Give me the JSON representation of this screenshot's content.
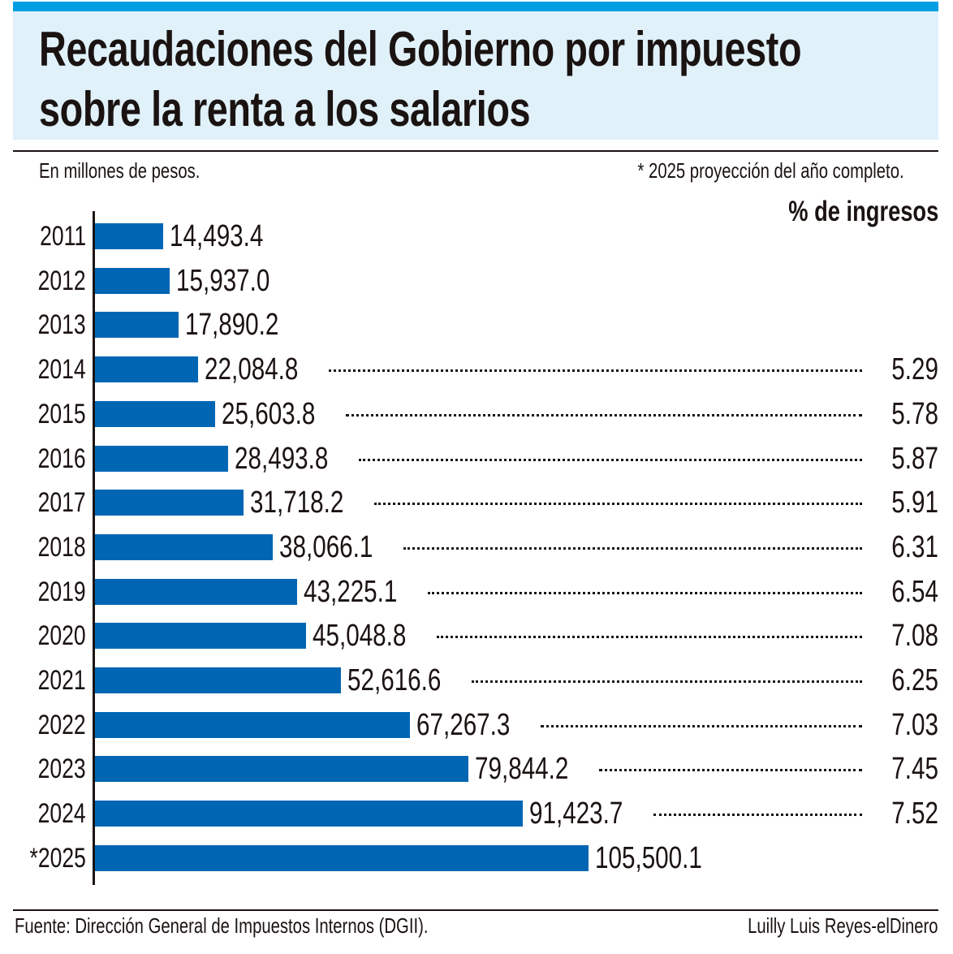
{
  "chart_data": {
    "type": "bar",
    "orientation": "horizontal",
    "title": "Recaudaciones del Gobierno por impuesto sobre la renta a los salarios",
    "title_lines": [
      "Recaudaciones del Gobierno por impuesto",
      "sobre la renta a los salarios"
    ],
    "subtitle": "En millones de pesos.",
    "note": "* 2025 proyección del año completo.",
    "secondary_header": "% de ingresos",
    "categories": [
      "2011",
      "2012",
      "2013",
      "2014",
      "2015",
      "2016",
      "2017",
      "2018",
      "2019",
      "2020",
      "2021",
      "2022",
      "2023",
      "2024",
      "*2025"
    ],
    "values": [
      14493.4,
      15937.0,
      17890.2,
      22084.8,
      25603.8,
      28493.8,
      31718.2,
      38066.1,
      43225.1,
      45048.8,
      52616.6,
      67267.3,
      79844.2,
      91423.7,
      105500.1
    ],
    "value_labels": [
      "14,493.4",
      "15,937.0",
      "17,890.2",
      "22,084.8",
      "25,603.8",
      "28,493.8",
      "31,718.2",
      "38,066.1",
      "43,225.1",
      "45,048.8",
      "52,616.6",
      "67,267.3",
      "79,844.2",
      "91,423.7",
      "105,500.1"
    ],
    "pct_ingresos": [
      "",
      "",
      "",
      "5.29",
      "5.78",
      "5.87",
      "5.91",
      "6.31",
      "6.54",
      "7.08",
      "6.25",
      "7.03",
      "7.45",
      "7.52",
      ""
    ],
    "xlim": [
      0,
      105500.1
    ],
    "grid": false,
    "colors": {
      "bar": "#0066b3",
      "accent_strip": "#009fe3",
      "header_bg": "#e0f1fa"
    }
  },
  "footer": {
    "source": "Fuente: Dirección General de Impuestos Internos (DGII).",
    "credit": "Luilly Luis Reyes-elDinero"
  }
}
